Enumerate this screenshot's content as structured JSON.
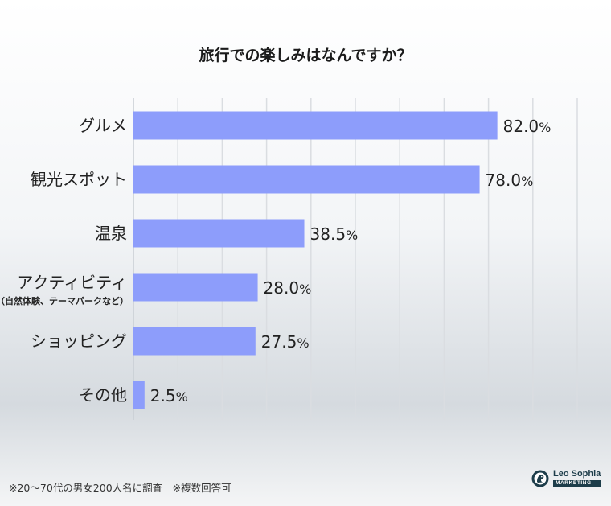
{
  "chart_data": {
    "type": "bar",
    "orientation": "horizontal",
    "title": "旅行での楽しみはなんですか？",
    "categories": [
      {
        "label": "グルメ",
        "sub": ""
      },
      {
        "label": "観光スポット",
        "sub": ""
      },
      {
        "label": "温泉",
        "sub": ""
      },
      {
        "label": "アクティビティ",
        "sub": "（自然体験、テーマパークなど）"
      },
      {
        "label": "ショッピング",
        "sub": ""
      },
      {
        "label": "その他",
        "sub": ""
      }
    ],
    "values": [
      82.0,
      78.0,
      38.5,
      28.0,
      27.5,
      2.5
    ],
    "value_labels": [
      "82.0",
      "78.0",
      "38.5",
      "28.0",
      "27.5",
      "2.5"
    ],
    "unit": "%",
    "xlim": [
      0,
      100
    ],
    "grid": true,
    "bar_color": "#8d9dfb"
  },
  "footnote": "※20〜70代の男女200人名に調査　※複数回答可",
  "brand": {
    "name": "Leo Sophia",
    "sub": "MARKETING",
    "icon": "lion-head-icon",
    "color": "#1d3d4a"
  }
}
